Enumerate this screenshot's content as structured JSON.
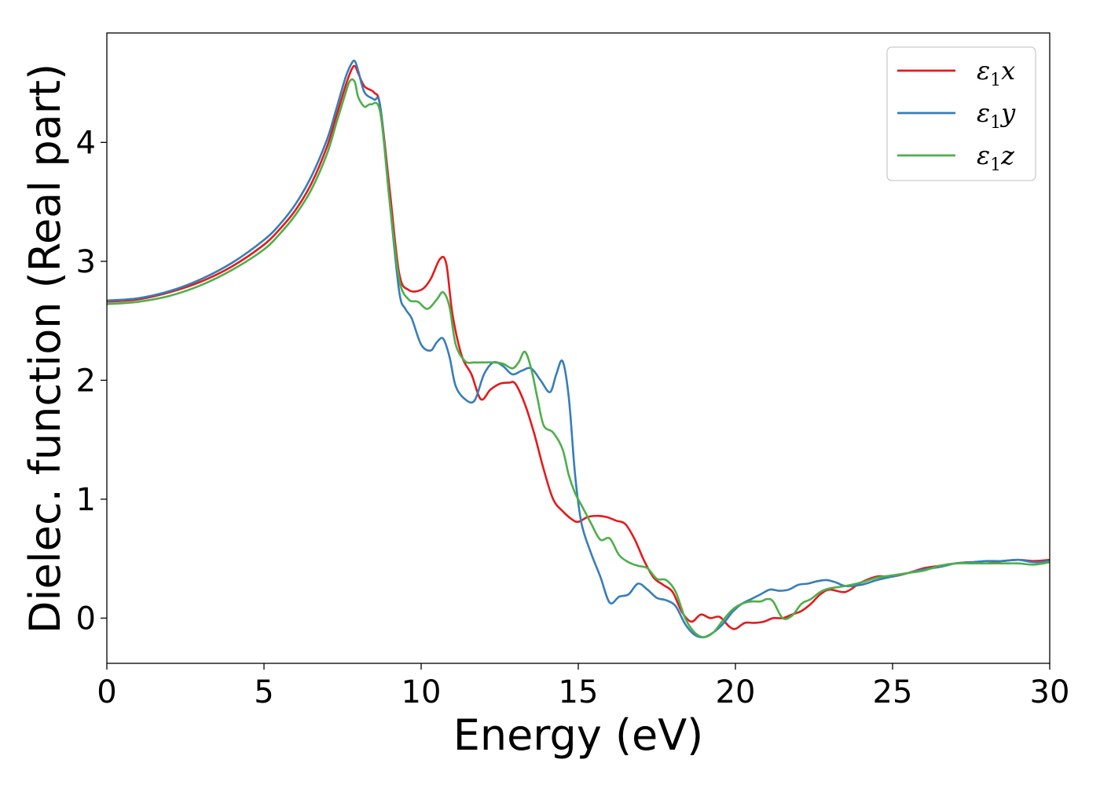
{
  "chart_data": {
    "type": "line",
    "title": "",
    "xlabel": "Energy (eV)",
    "ylabel": "Dielec. function (Real part)",
    "xlim": [
      0,
      30
    ],
    "ylim": [
      -0.38,
      4.92
    ],
    "xticks": [
      0,
      5,
      10,
      15,
      20,
      25,
      30
    ],
    "yticks": [
      0,
      1,
      2,
      3,
      4
    ],
    "grid": false,
    "legend_position": "top-right",
    "series": [
      {
        "name": "ε1x",
        "label_base": "ε",
        "label_sub": "1",
        "label_axis": "x",
        "color": "#e41a1c",
        "x": [
          0,
          1,
          2,
          3,
          4,
          5,
          5.5,
          6,
          6.5,
          7,
          7.3,
          7.6,
          7.8,
          7.9,
          8.0,
          8.2,
          8.5,
          8.7,
          9.0,
          9.3,
          9.6,
          10.0,
          10.3,
          10.6,
          10.8,
          11.0,
          11.3,
          11.6,
          11.9,
          12.2,
          12.5,
          12.8,
          13.0,
          13.3,
          13.6,
          13.9,
          14.2,
          14.5,
          14.8,
          15.0,
          15.3,
          15.6,
          15.9,
          16.2,
          16.5,
          16.8,
          17.1,
          17.4,
          17.7,
          18.0,
          18.3,
          18.6,
          18.9,
          19.2,
          19.5,
          19.8,
          20.0,
          20.3,
          20.6,
          20.9,
          21.2,
          21.5,
          21.8,
          22.1,
          22.4,
          22.7,
          23.0,
          23.5,
          24.0,
          24.5,
          25.0,
          25.5,
          26.0,
          26.5,
          27.0,
          27.5,
          28.0,
          28.5,
          29.0,
          29.5,
          30.0
        ],
        "y": [
          2.66,
          2.68,
          2.74,
          2.83,
          2.96,
          3.14,
          3.27,
          3.43,
          3.65,
          3.96,
          4.22,
          4.48,
          4.62,
          4.64,
          4.58,
          4.47,
          4.42,
          4.3,
          3.6,
          2.9,
          2.76,
          2.76,
          2.85,
          3.02,
          2.98,
          2.55,
          2.2,
          2.05,
          1.84,
          1.92,
          1.97,
          1.98,
          1.97,
          1.8,
          1.55,
          1.25,
          1.0,
          0.9,
          0.83,
          0.81,
          0.85,
          0.86,
          0.85,
          0.82,
          0.79,
          0.66,
          0.48,
          0.34,
          0.28,
          0.22,
          0.05,
          -0.03,
          0.03,
          0.0,
          0.01,
          -0.07,
          -0.09,
          -0.04,
          -0.04,
          -0.03,
          0.0,
          0.0,
          0.03,
          0.06,
          0.12,
          0.2,
          0.24,
          0.22,
          0.3,
          0.35,
          0.35,
          0.38,
          0.42,
          0.44,
          0.46,
          0.47,
          0.46,
          0.48,
          0.49,
          0.48,
          0.49
        ]
      },
      {
        "name": "ε1y",
        "label_base": "ε",
        "label_sub": "1",
        "label_axis": "y",
        "color": "#377eb8",
        "x": [
          0,
          1,
          2,
          3,
          4,
          5,
          5.5,
          6,
          6.5,
          7,
          7.3,
          7.6,
          7.8,
          7.9,
          8.0,
          8.2,
          8.5,
          8.7,
          9.0,
          9.3,
          9.5,
          9.7,
          10.0,
          10.3,
          10.5,
          10.7,
          10.9,
          11.1,
          11.4,
          11.7,
          12.0,
          12.3,
          12.6,
          12.9,
          13.2,
          13.5,
          13.8,
          14.1,
          14.3,
          14.5,
          14.7,
          14.9,
          15.1,
          15.4,
          15.7,
          16.0,
          16.3,
          16.6,
          16.9,
          17.2,
          17.5,
          17.8,
          18.1,
          18.4,
          18.7,
          19.0,
          19.3,
          19.6,
          19.9,
          20.2,
          20.5,
          20.8,
          21.1,
          21.4,
          21.7,
          22.0,
          22.3,
          22.6,
          22.9,
          23.2,
          23.5,
          24.0,
          24.5,
          25.0,
          25.5,
          26.0,
          26.5,
          27.0,
          27.5,
          28.0,
          28.5,
          29.0,
          29.5,
          30.0
        ],
        "y": [
          2.67,
          2.69,
          2.75,
          2.85,
          2.99,
          3.18,
          3.31,
          3.48,
          3.71,
          4.02,
          4.28,
          4.55,
          4.67,
          4.68,
          4.6,
          4.42,
          4.36,
          4.3,
          3.5,
          2.75,
          2.6,
          2.52,
          2.3,
          2.25,
          2.32,
          2.35,
          2.2,
          1.95,
          1.84,
          1.83,
          2.05,
          2.15,
          2.12,
          2.05,
          2.08,
          2.1,
          2.0,
          1.9,
          2.05,
          2.16,
          1.85,
          1.2,
          0.8,
          0.55,
          0.35,
          0.13,
          0.18,
          0.2,
          0.29,
          0.24,
          0.17,
          0.15,
          0.1,
          -0.05,
          -0.14,
          -0.16,
          -0.12,
          -0.05,
          0.05,
          0.12,
          0.16,
          0.2,
          0.24,
          0.23,
          0.24,
          0.28,
          0.29,
          0.31,
          0.32,
          0.3,
          0.27,
          0.28,
          0.32,
          0.35,
          0.38,
          0.41,
          0.43,
          0.46,
          0.47,
          0.48,
          0.48,
          0.49,
          0.47,
          0.48
        ]
      },
      {
        "name": "ε1z",
        "label_base": "ε",
        "label_sub": "1",
        "label_axis": "z",
        "color": "#4daf4a",
        "x": [
          0,
          1,
          2,
          3,
          4,
          5,
          5.5,
          6,
          6.5,
          7,
          7.3,
          7.6,
          7.7,
          7.8,
          7.9,
          8.0,
          8.2,
          8.4,
          8.7,
          9.0,
          9.3,
          9.6,
          9.9,
          10.2,
          10.5,
          10.7,
          10.9,
          11.1,
          11.4,
          11.7,
          12.0,
          12.3,
          12.6,
          12.9,
          13.1,
          13.3,
          13.5,
          13.7,
          13.9,
          14.2,
          14.5,
          14.7,
          14.9,
          15.1,
          15.4,
          15.7,
          16.0,
          16.3,
          16.6,
          16.9,
          17.2,
          17.5,
          17.8,
          18.1,
          18.4,
          18.7,
          19.0,
          19.3,
          19.6,
          19.9,
          20.2,
          20.5,
          20.8,
          21.0,
          21.2,
          21.5,
          21.8,
          22.1,
          22.4,
          22.7,
          23.0,
          23.5,
          24.0,
          24.5,
          25.0,
          25.5,
          26.0,
          26.5,
          27.0,
          27.5,
          28.0,
          28.5,
          29.0,
          29.5,
          30.0
        ],
        "y": [
          2.64,
          2.66,
          2.71,
          2.8,
          2.93,
          3.1,
          3.23,
          3.39,
          3.6,
          3.9,
          4.16,
          4.42,
          4.5,
          4.53,
          4.5,
          4.38,
          4.3,
          4.32,
          4.25,
          3.5,
          2.85,
          2.68,
          2.66,
          2.6,
          2.68,
          2.74,
          2.62,
          2.3,
          2.16,
          2.15,
          2.15,
          2.15,
          2.14,
          2.1,
          2.15,
          2.24,
          2.1,
          1.85,
          1.62,
          1.56,
          1.42,
          1.2,
          1.05,
          0.95,
          0.8,
          0.66,
          0.67,
          0.53,
          0.47,
          0.44,
          0.42,
          0.33,
          0.32,
          0.22,
          0.0,
          -0.12,
          -0.16,
          -0.12,
          -0.02,
          0.07,
          0.12,
          0.14,
          0.14,
          0.16,
          0.14,
          0.0,
          0.02,
          0.12,
          0.16,
          0.22,
          0.25,
          0.27,
          0.3,
          0.34,
          0.36,
          0.38,
          0.4,
          0.44,
          0.46,
          0.46,
          0.46,
          0.46,
          0.46,
          0.45,
          0.47
        ]
      }
    ]
  }
}
